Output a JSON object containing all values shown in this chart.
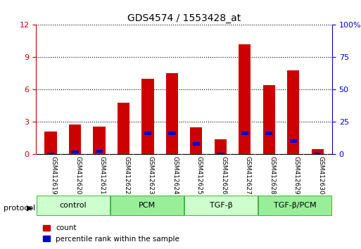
{
  "title": "GDS4574 / 1553428_at",
  "samples": [
    "GSM412619",
    "GSM412620",
    "GSM412621",
    "GSM412622",
    "GSM412623",
    "GSM412624",
    "GSM412625",
    "GSM412626",
    "GSM412627",
    "GSM412628",
    "GSM412629",
    "GSM412630"
  ],
  "red_values": [
    2.1,
    2.8,
    2.6,
    4.8,
    7.0,
    7.5,
    2.5,
    1.4,
    10.2,
    6.4,
    7.8,
    0.5
  ],
  "blue_values": [
    0.12,
    0.22,
    0.28,
    0.0,
    0.32,
    0.32,
    0.32,
    0.12,
    0.32,
    0.32,
    0.32,
    0.12
  ],
  "blue_positions": [
    0.05,
    0.12,
    0.15,
    0.0,
    1.8,
    1.8,
    0.8,
    0.05,
    1.8,
    1.8,
    1.1,
    0.05
  ],
  "ylim_left": [
    0,
    12
  ],
  "ylim_right": [
    0,
    100
  ],
  "yticks_left": [
    0,
    3,
    6,
    9,
    12
  ],
  "yticks_right": [
    0,
    25,
    50,
    75,
    100
  ],
  "ytick_labels_right": [
    "0",
    "25",
    "50",
    "75",
    "100%"
  ],
  "left_axis_color": "#cc0000",
  "right_axis_color": "#0000cc",
  "protocol_groups": [
    {
      "label": "control",
      "start": 0,
      "end": 3,
      "color": "#ccffcc"
    },
    {
      "label": "PCM",
      "start": 3,
      "end": 6,
      "color": "#99ee99"
    },
    {
      "label": "TGF-β",
      "start": 6,
      "end": 9,
      "color": "#ccffcc"
    },
    {
      "label": "TGF-β/PCM",
      "start": 9,
      "end": 12,
      "color": "#99ee99"
    }
  ],
  "protocol_label": "protocol",
  "legend_red": "count",
  "legend_blue": "percentile rank within the sample",
  "bar_color_red": "#cc0000",
  "bar_color_blue": "#0000cc",
  "bar_width": 0.5,
  "background_color": "#ffffff",
  "plot_bg": "#ffffff",
  "grid_color": "#000000",
  "tick_area_color": "#cccccc"
}
